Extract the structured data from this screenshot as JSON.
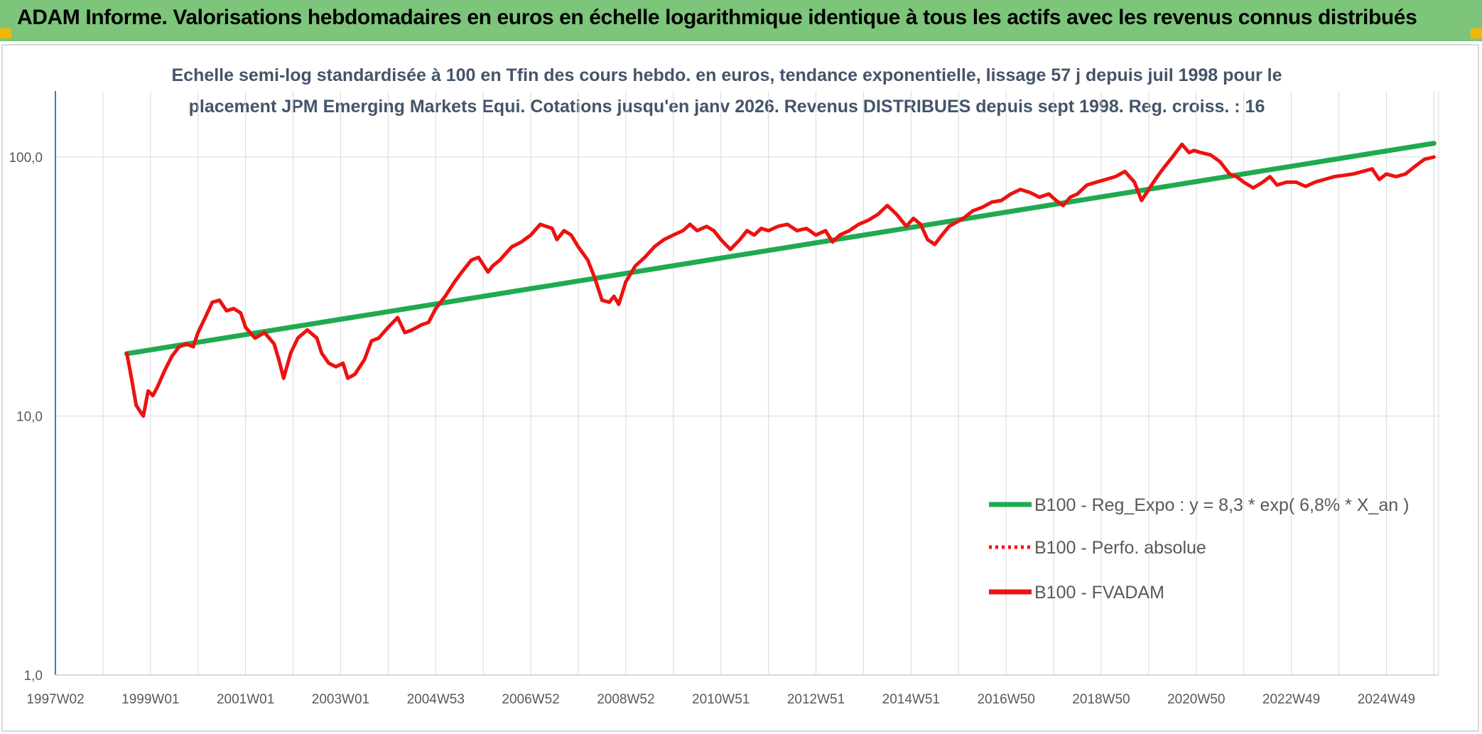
{
  "header": {
    "title": "ADAM Informe. Valorisations hebdomadaires en euros en échelle logarithmique identique à tous les actifs avec les revenus connus distribués"
  },
  "colors": {
    "header_bg": "#7cc57a",
    "corner_marker": "#f2b705",
    "regression_line": "#1faa4f",
    "perf_line": "#ff0000",
    "fvadam_line": "#ee1111",
    "y_axis_line": "#4472c4",
    "grid": "#d9d9d9"
  },
  "chart_data": {
    "type": "line",
    "subtitle_lines": [
      "Echelle semi-log standardisée à 100 en Tfin des cours hebdo. en euros, tendance exponentielle, lissage 57 j depuis juil 1998 pour le",
      "placement JPM Emerging Markets Equi. Cotations jusqu'en janv 2026. Revenus DISTRIBUES depuis sept 1998. Reg. croiss. : 16"
    ],
    "y_scale": "log",
    "ylim": [
      1,
      180
    ],
    "y_ticks": [
      {
        "value": 1,
        "label": "1,0"
      },
      {
        "value": 10,
        "label": "10,0"
      },
      {
        "value": 100,
        "label": "100,0"
      }
    ],
    "xlim": [
      1997.0,
      2026.1
    ],
    "x_ticks": [
      {
        "value": 1997.0,
        "label": "1997W02"
      },
      {
        "value": 1999.0,
        "label": "1999W01"
      },
      {
        "value": 2001.0,
        "label": "2001W01"
      },
      {
        "value": 2003.0,
        "label": "2003W01"
      },
      {
        "value": 2005.0,
        "label": "2004W53"
      },
      {
        "value": 2007.0,
        "label": "2006W52"
      },
      {
        "value": 2009.0,
        "label": "2008W52"
      },
      {
        "value": 2011.0,
        "label": "2010W51"
      },
      {
        "value": 2013.0,
        "label": "2012W51"
      },
      {
        "value": 2015.0,
        "label": "2014W51"
      },
      {
        "value": 2017.0,
        "label": "2016W50"
      },
      {
        "value": 2019.0,
        "label": "2018W50"
      },
      {
        "value": 2021.0,
        "label": "2020W50"
      },
      {
        "value": 2023.0,
        "label": "2022W49"
      },
      {
        "value": 2025.0,
        "label": "2024W49"
      }
    ],
    "grid": true,
    "legend_position": "right",
    "series": [
      {
        "name": "B100 - Reg_Expo : y = 8,3 * exp( 6,8% *  X_an )",
        "style": "solid",
        "x": [
          1998.5,
          2026.0
        ],
        "y": [
          17.4,
          113
        ]
      },
      {
        "name": "B100 - Perfo. absolue",
        "style": "dotted",
        "x": [],
        "y": []
      },
      {
        "name": "B100 - FVADAM",
        "style": "solid",
        "x": [
          1998.5,
          1998.6,
          1998.7,
          1998.8,
          1998.85,
          1998.95,
          1999.05,
          1999.15,
          1999.3,
          1999.45,
          1999.6,
          1999.75,
          1999.9,
          2000.0,
          2000.15,
          2000.3,
          2000.45,
          2000.6,
          2000.75,
          2000.9,
          2001.0,
          2001.2,
          2001.4,
          2001.6,
          2001.7,
          2001.8,
          2001.95,
          2002.1,
          2002.3,
          2002.5,
          2002.6,
          2002.75,
          2002.9,
          2003.05,
          2003.15,
          2003.3,
          2003.5,
          2003.65,
          2003.8,
          2004.0,
          2004.2,
          2004.35,
          2004.5,
          2004.7,
          2004.85,
          2005.0,
          2005.2,
          2005.4,
          2005.55,
          2005.75,
          2005.9,
          2006.1,
          2006.2,
          2006.35,
          2006.45,
          2006.6,
          2006.8,
          2007.0,
          2007.2,
          2007.45,
          2007.55,
          2007.7,
          2007.85,
          2008.0,
          2008.2,
          2008.35,
          2008.5,
          2008.65,
          2008.75,
          2008.85,
          2009.0,
          2009.2,
          2009.4,
          2009.6,
          2009.8,
          2010.0,
          2010.2,
          2010.35,
          2010.5,
          2010.7,
          2010.85,
          2011.0,
          2011.2,
          2011.4,
          2011.55,
          2011.7,
          2011.85,
          2012.0,
          2012.2,
          2012.4,
          2012.6,
          2012.8,
          2013.0,
          2013.2,
          2013.35,
          2013.5,
          2013.7,
          2013.9,
          2014.1,
          2014.3,
          2014.5,
          2014.7,
          2014.9,
          2015.05,
          2015.2,
          2015.35,
          2015.5,
          2015.65,
          2015.8,
          2015.95,
          2016.1,
          2016.3,
          2016.5,
          2016.7,
          2016.9,
          2017.1,
          2017.3,
          2017.5,
          2017.7,
          2017.9,
          2018.05,
          2018.2,
          2018.35,
          2018.5,
          2018.7,
          2018.9,
          2019.1,
          2019.3,
          2019.5,
          2019.7,
          2019.85,
          2020.0,
          2020.1,
          2020.2,
          2020.3,
          2020.5,
          2020.7,
          2020.85,
          2020.95,
          2021.1,
          2021.3,
          2021.5,
          2021.7,
          2021.85,
          2022.0,
          2022.2,
          2022.4,
          2022.55,
          2022.7,
          2022.9,
          2023.1,
          2023.3,
          2023.5,
          2023.7,
          2023.9,
          2024.1,
          2024.3,
          2024.5,
          2024.7,
          2024.85,
          2025.0,
          2025.2,
          2025.4,
          2025.6,
          2025.8,
          2026.0
        ],
        "y": [
          17.5,
          14.0,
          11.0,
          10.3,
          10.0,
          12.5,
          12.0,
          13.0,
          15.0,
          17.0,
          18.5,
          19.0,
          18.5,
          21.0,
          24.0,
          27.5,
          28.0,
          25.5,
          26.0,
          25.0,
          22.0,
          20.0,
          21.0,
          19.0,
          16.5,
          14.0,
          17.5,
          20.0,
          21.5,
          20.0,
          17.5,
          16.0,
          15.5,
          16.0,
          14.0,
          14.5,
          16.5,
          19.5,
          20.0,
          22.0,
          24.0,
          21.0,
          21.5,
          22.5,
          23.0,
          26.0,
          29.0,
          33.0,
          36.0,
          40.0,
          41.0,
          36.0,
          38.0,
          40.0,
          42.0,
          45.0,
          47.0,
          50.0,
          55.0,
          53.0,
          48.0,
          52.0,
          50.0,
          45.0,
          40.0,
          34.0,
          28.0,
          27.5,
          29.0,
          27.0,
          33.0,
          38.0,
          41.0,
          45.0,
          48.0,
          50.0,
          52.0,
          55.0,
          52.0,
          54.0,
          52.0,
          48.0,
          44.0,
          48.0,
          52.0,
          50.0,
          53.0,
          52.0,
          54.0,
          55.0,
          52.0,
          53.0,
          50.0,
          52.0,
          47.0,
          50.0,
          52.0,
          55.0,
          57.0,
          60.0,
          65.0,
          60.0,
          54.0,
          58.0,
          55.0,
          48.0,
          46.0,
          50.0,
          54.0,
          56.0,
          58.0,
          62.0,
          64.0,
          67.0,
          68.0,
          72.0,
          75.0,
          73.0,
          70.0,
          72.0,
          68.0,
          65.0,
          70.0,
          72.0,
          78.0,
          80.0,
          82.0,
          84.0,
          88.0,
          80.0,
          68.0,
          75.0,
          80.0,
          85.0,
          90.0,
          100.0,
          112.0,
          104.0,
          106.0,
          104.0,
          102.0,
          96.0,
          86.0,
          84.0,
          80.0,
          76.0,
          80.0,
          84.0,
          78.0,
          80.0,
          80.0,
          77.0,
          80.0,
          82.0,
          84.0,
          85.0,
          86.0,
          88.0,
          90.0,
          82.0,
          86.0,
          84.0,
          86.0,
          92.0,
          98.0,
          100.0
        ]
      }
    ]
  }
}
